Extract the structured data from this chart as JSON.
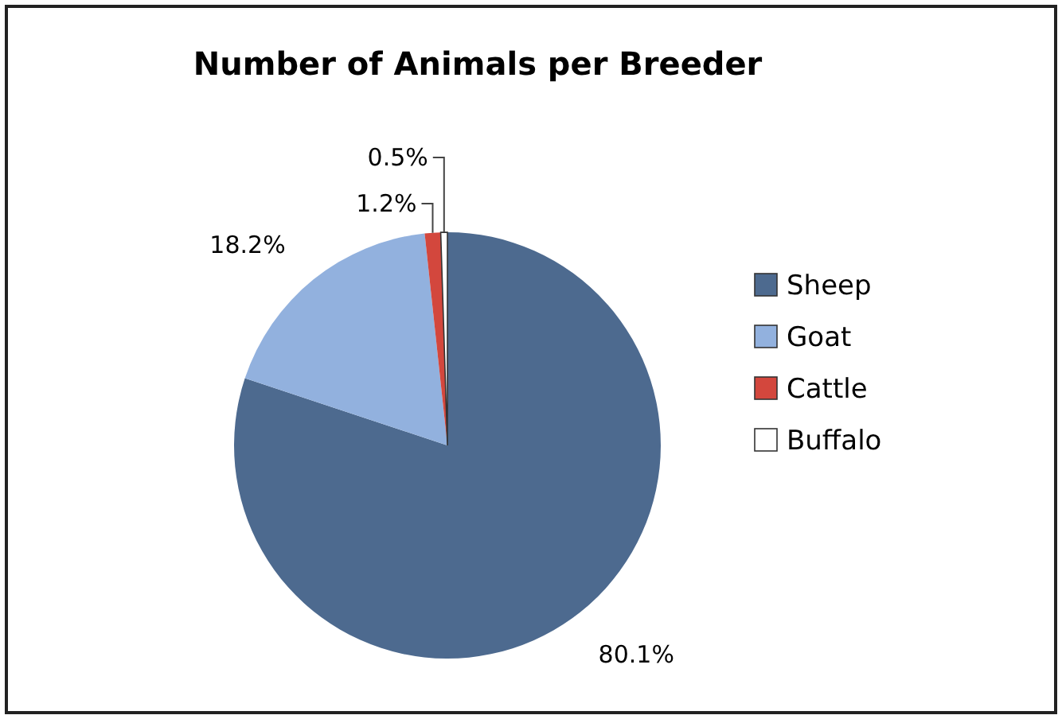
{
  "chart_data": {
    "type": "pie",
    "title": "Number of Animals per Breeder",
    "categories": [
      "Sheep",
      "Goat",
      "Cattle",
      "Buffalo"
    ],
    "values": [
      80.1,
      18.2,
      1.2,
      0.5
    ],
    "value_labels": [
      "80.1%",
      "18.2%",
      "1.2%",
      "0.5%"
    ],
    "colors": [
      "#4d6a8f",
      "#92b1de",
      "#d3473d",
      "#ffffff"
    ],
    "legend": "right"
  }
}
